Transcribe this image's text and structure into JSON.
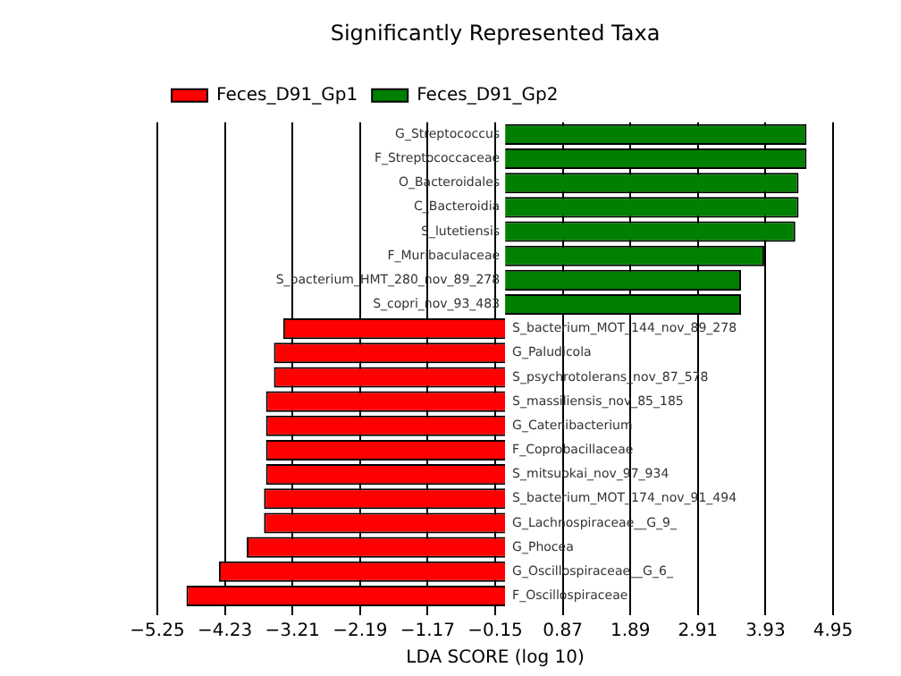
{
  "chart_data": {
    "type": "bar",
    "orientation": "horizontal",
    "title": "Significantly Represented Taxa",
    "xlabel": "LDA SCORE (log 10)",
    "categories": [
      "G_Streptococcus",
      "F_Streptococcaceae",
      "O_Bacteroidales",
      "C_Bacteroidia",
      "S_lutetiensis",
      "F_Muribaculaceae",
      "S_bacterium_HMT_280_nov_89_278",
      "S_copri_nov_93_483",
      "S_bacterium_MOT_144_nov_89_278",
      "G_Paludicola",
      "S_psychrotolerans_nov_87_578",
      "S_massiliensis_nov_85_185",
      "G_Catenibacterium",
      "F_Coprobacillaceae",
      "S_mitsuokai_nov_97_934",
      "S_bacterium_MOT_174_nov_91_494",
      "G_Lachnospiraceae__G_9_",
      "G_Phocea",
      "G_Oscillospiraceae__G_6_",
      "F_Oscillospiraceae"
    ],
    "series": [
      {
        "name": "Feces_D91_Gp1",
        "color": "#ff0000",
        "values": [
          null,
          null,
          null,
          null,
          null,
          null,
          null,
          null,
          -3.35,
          -3.49,
          -3.49,
          -3.61,
          -3.61,
          -3.61,
          -3.61,
          -3.64,
          -3.64,
          -3.9,
          -4.32,
          -4.81
        ]
      },
      {
        "name": "Feces_D91_Gp2",
        "color": "#008000",
        "values": [
          4.55,
          4.55,
          4.43,
          4.43,
          4.38,
          3.91,
          3.56,
          3.56,
          null,
          null,
          null,
          null,
          null,
          null,
          null,
          null,
          null,
          null,
          null,
          null
        ]
      }
    ],
    "xlim": [
      -5.25,
      4.95
    ],
    "xticks": [
      {
        "value": -5.25,
        "label": "−5.25"
      },
      {
        "value": -4.23,
        "label": "−4.23"
      },
      {
        "value": -3.21,
        "label": "−3.21"
      },
      {
        "value": -2.19,
        "label": "−2.19"
      },
      {
        "value": -1.17,
        "label": "−1.17"
      },
      {
        "value": -0.15,
        "label": "−0.15"
      },
      0.87,
      1.89,
      2.91,
      3.93,
      4.95
    ],
    "grid": "x",
    "legend": "top left"
  }
}
